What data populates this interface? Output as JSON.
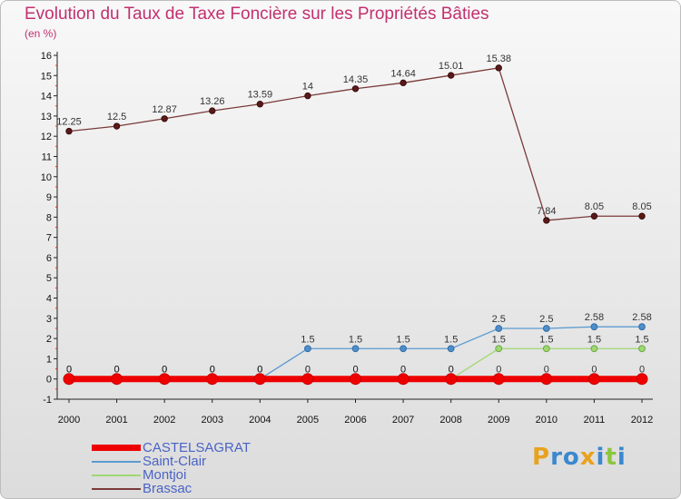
{
  "title": "Evolution du Taux de Taxe Foncière sur les Propriétés Bâties",
  "unit_label": "(en %)",
  "logo": {
    "letters": [
      "P",
      "r",
      "o",
      "x",
      "i",
      "t",
      "i"
    ],
    "colors": [
      "#e8a21e",
      "#3a88cf",
      "#3a88cf",
      "#e8a21e",
      "#3a88cf",
      "#8cc63f",
      "#3a88cf"
    ]
  },
  "chart_data": {
    "type": "line",
    "title": "Evolution du Taux de Taxe Foncière sur les Propriétés Bâties",
    "ylabel": "(en %)",
    "xlabel": "",
    "categories": [
      "2000",
      "2001",
      "2002",
      "2003",
      "2004",
      "2005",
      "2006",
      "2007",
      "2008",
      "2009",
      "2010",
      "2011",
      "2012"
    ],
    "ylim": [
      -1,
      16
    ],
    "yticks": [
      "-1",
      "0",
      "1",
      "2",
      "3",
      "4",
      "5",
      "6",
      "7",
      "8",
      "9",
      "10",
      "11",
      "12",
      "13",
      "14",
      "15",
      "16"
    ],
    "series": [
      {
        "name": "CASTELSAGRAT",
        "color": "#ee0000",
        "values": [
          0,
          0,
          0,
          0,
          0,
          0,
          0,
          0,
          0,
          0,
          0,
          0,
          0
        ],
        "labels": [
          "0",
          "0",
          "0",
          "0",
          "0",
          "0",
          "0",
          "0",
          "0",
          "0",
          "0",
          "0",
          "0"
        ]
      },
      {
        "name": "Saint-Clair",
        "color": "#5b9bd0",
        "values": [
          0,
          0,
          0,
          0,
          0,
          1.5,
          1.5,
          1.5,
          1.5,
          2.5,
          2.5,
          2.58,
          2.58
        ],
        "labels": [
          "0",
          "0",
          "0",
          "0",
          "0",
          "1.5",
          "1.5",
          "1.5",
          "1.5",
          "2.5",
          "2.5",
          "2.58",
          "2.58"
        ]
      },
      {
        "name": "Montjoi",
        "color": "#9fd873",
        "values": [
          0,
          0,
          0,
          0,
          0,
          0,
          0,
          0,
          0,
          1.5,
          1.5,
          1.5,
          1.5
        ],
        "labels": [
          "0",
          "0",
          "0",
          "0",
          "0",
          "0",
          "0",
          "0",
          "0",
          "1.5",
          "1.5",
          "1.5",
          "1.5"
        ]
      },
      {
        "name": "Brassac",
        "color": "#7a3a3a",
        "values": [
          12.25,
          12.5,
          12.87,
          13.26,
          13.59,
          14,
          14.35,
          14.64,
          15.01,
          15.38,
          7.84,
          8.05,
          8.05
        ],
        "labels": [
          "12.25",
          "12.5",
          "12.87",
          "13.26",
          "13.59",
          "14",
          "14.35",
          "14.64",
          "15.01",
          "15.38",
          "7.84",
          "8.05",
          "8.05"
        ]
      }
    ],
    "grid": false,
    "legend": "bottom-left"
  }
}
